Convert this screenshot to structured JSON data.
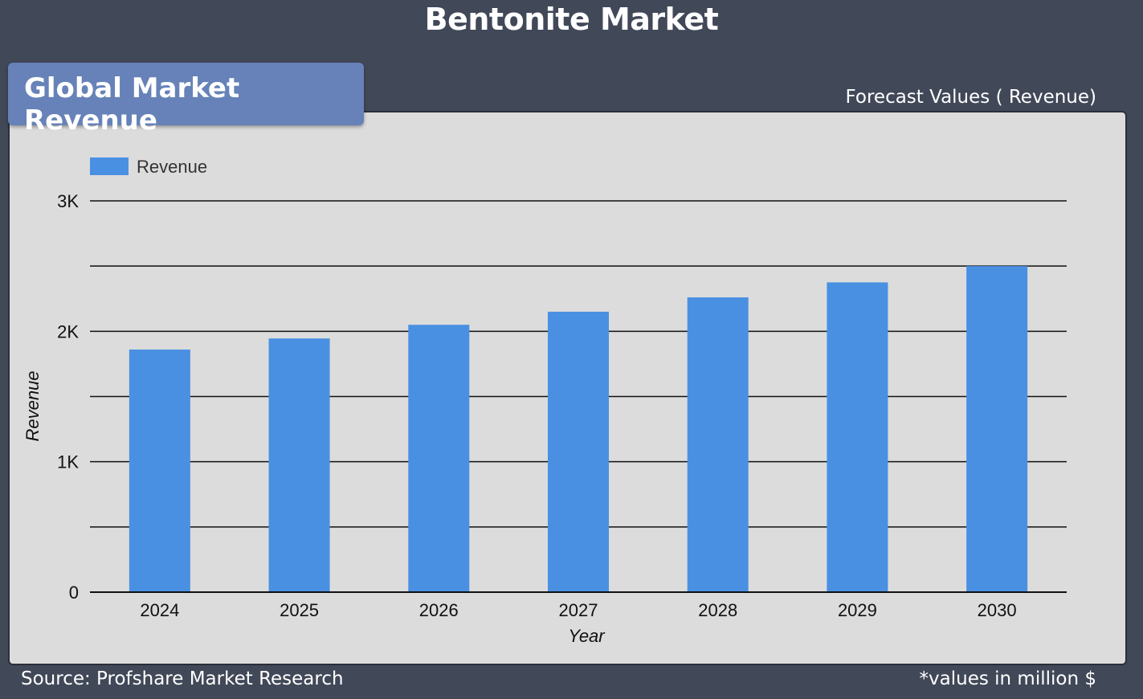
{
  "page_title": "Bentonite Market",
  "badge_title": "Global Market Revenue",
  "forecast_label": "Forecast Values ( Revenue)",
  "footer": {
    "source": "Source: Profshare Market Research",
    "note": "*values in million $"
  },
  "chart_data": {
    "type": "bar",
    "categories": [
      "2024",
      "2025",
      "2026",
      "2027",
      "2028",
      "2029",
      "2030"
    ],
    "series": [
      {
        "name": "Revenue",
        "color": "#4a90e2",
        "values": [
          1860,
          1945,
          2050,
          2150,
          2260,
          2375,
          2500
        ]
      }
    ],
    "xlabel": "Year",
    "ylabel": "Revenue",
    "ylim": [
      0,
      3000
    ],
    "y_ticks": [
      0,
      1000,
      2000,
      3000
    ],
    "y_tick_labels": [
      "0",
      "1K",
      "2K",
      "3K"
    ],
    "grid": true,
    "legend": "top-left"
  }
}
